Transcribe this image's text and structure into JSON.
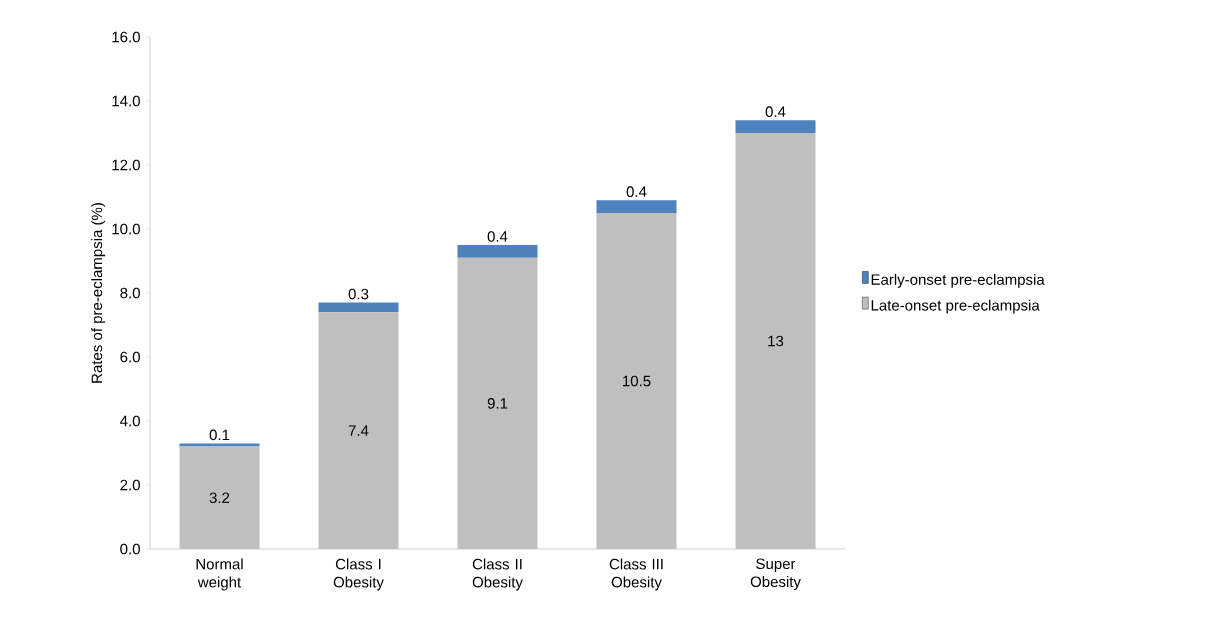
{
  "chart_data": {
    "type": "bar",
    "stacked": true,
    "ylabel": "Rates of pre-eclampsia (%)",
    "categories": [
      "Normal weight",
      "Class I Obesity",
      "Class II Obesity",
      "Class III Obesity",
      "Super Obesity"
    ],
    "series": [
      {
        "name": "Late-onset pre-eclampsia",
        "color": "#bfbfbf",
        "values": [
          3.2,
          7.4,
          9.1,
          10.5,
          13
        ]
      },
      {
        "name": "Early-onset pre-eclampsia",
        "color": "#4f81bd",
        "values": [
          0.1,
          0.3,
          0.4,
          0.4,
          0.4
        ]
      }
    ],
    "ylim": [
      0,
      16
    ],
    "yticks": [
      {
        "value": 0,
        "label": "0.0"
      },
      {
        "value": 2,
        "label": "2.0"
      },
      {
        "value": 4,
        "label": "4.0"
      },
      {
        "value": 6,
        "label": "6.0"
      },
      {
        "value": 8,
        "label": "8.0"
      },
      {
        "value": 10,
        "label": "10.0"
      },
      {
        "value": 12,
        "label": "12.0"
      },
      {
        "value": 14,
        "label": "14.0"
      },
      {
        "value": 16,
        "label": "16.0"
      }
    ],
    "data_labels": true,
    "legend": "right",
    "grid": false
  }
}
